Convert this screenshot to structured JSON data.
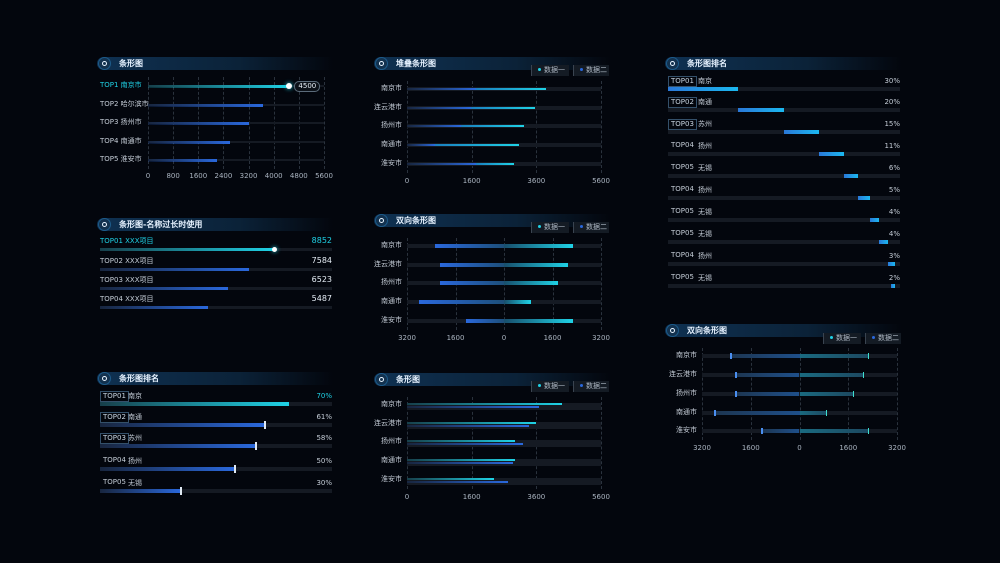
{
  "colors": {
    "cyan": "#1fd2e6",
    "blue": "#2a68dc",
    "track": "#151a23"
  },
  "panel_bar": {
    "title": "条形图",
    "highlight_value": "4500",
    "rows": [
      {
        "label": "TOP1  南京市",
        "value": 4500
      },
      {
        "label": "TOP2 哈尔滨市",
        "value": 3650
      },
      {
        "label": "TOP3 扬州市",
        "value": 3200
      },
      {
        "label": "TOP4 南通市",
        "value": 2600
      },
      {
        "label": "TOP5 淮安市",
        "value": 2200
      }
    ],
    "ticks": [
      "0",
      "800",
      "1600",
      "2400",
      "3200",
      "4000",
      "4800",
      "5600"
    ],
    "max": 5600
  },
  "panel_long": {
    "title": "条形图-名称过长时使用",
    "rows": [
      {
        "label": "TOP01  XXX项目",
        "value": "8852",
        "n": 8852
      },
      {
        "label": "TOP02  XXX项目",
        "value": "7584",
        "n": 7584
      },
      {
        "label": "TOP03  XXX项目",
        "value": "6523",
        "n": 6523
      },
      {
        "label": "TOP04  XXX项目",
        "value": "5487",
        "n": 5487
      }
    ],
    "max": 11800
  },
  "panel_rank_left": {
    "title": "条形图排名",
    "rows": [
      {
        "rank": "TOP01",
        "city": "南京",
        "pct": "70%",
        "n": 70
      },
      {
        "rank": "TOP02",
        "city": "南通",
        "pct": "61%",
        "n": 61
      },
      {
        "rank": "TOP03",
        "city": "苏州",
        "pct": "58%",
        "n": 58
      },
      {
        "rank": "TOP04",
        "city": "扬州",
        "pct": "50%",
        "n": 50
      },
      {
        "rank": "TOP05",
        "city": "无锡",
        "pct": "30%",
        "n": 30
      }
    ]
  },
  "legend": {
    "series1": "数据一",
    "series2": "数据二"
  },
  "chart_data": [
    {
      "type": "bar",
      "title": "堆叠条形图",
      "stacked": true,
      "categories": [
        "南京市",
        "连云港市",
        "扬州市",
        "南通市",
        "淮安市"
      ],
      "series": [
        {
          "name": "数据二",
          "values": [
            2000,
            1850,
            1560,
            810,
            2000
          ]
        },
        {
          "name": "数据一",
          "values": [
            2000,
            1850,
            1820,
            2420,
            1090
          ]
        }
      ],
      "ticks": [
        "0",
        "1600",
        "3600",
        "5600"
      ],
      "xlim": [
        0,
        5600
      ]
    },
    {
      "type": "bar",
      "title": "双向条形图",
      "diverging": true,
      "categories": [
        "南京市",
        "连云港市",
        "扬州市",
        "南通市",
        "淮安市"
      ],
      "series": [
        {
          "name": "数据二",
          "values": [
            2280,
            2110,
            2110,
            2800,
            1250
          ]
        },
        {
          "name": "数据一",
          "values": [
            2280,
            2110,
            1780,
            890,
            2280
          ]
        }
      ],
      "ticks": [
        "3200",
        "1600",
        "0",
        "1600",
        "3200"
      ],
      "xlim": [
        -3200,
        3200
      ]
    },
    {
      "type": "bar",
      "title": "条形图",
      "grouped": true,
      "categories": [
        "南京市",
        "连云港市",
        "扬州市",
        "南通市",
        "淮安市"
      ],
      "series": [
        {
          "name": "数据一",
          "values": [
            4470,
            3720,
            3120,
            3120,
            2510
          ]
        },
        {
          "name": "数据二",
          "values": [
            3810,
            3520,
            3350,
            3060,
            2910
          ]
        }
      ],
      "ticks": [
        "0",
        "1600",
        "3600",
        "5600"
      ],
      "xlim": [
        0,
        5600
      ]
    },
    {
      "type": "bar",
      "title": "双向条形图",
      "diverging": true,
      "style": "marker",
      "categories": [
        "南京市",
        "连云港市",
        "扬州市",
        "南通市",
        "淮安市"
      ],
      "series": [
        {
          "name": "数据二",
          "values": [
            2280,
            2110,
            2110,
            2800,
            1250
          ]
        },
        {
          "name": "数据一",
          "values": [
            2280,
            2110,
            1780,
            890,
            2280
          ]
        }
      ],
      "ticks": [
        "3200",
        "1600",
        "0",
        "1600",
        "3200"
      ],
      "xlim": [
        -3200,
        3200
      ]
    }
  ],
  "panel_rank_right": {
    "title": "条形图排名",
    "rows": [
      {
        "rank": "TOP01",
        "city": "南京",
        "pct": "30%",
        "n": 30
      },
      {
        "rank": "TOP02",
        "city": "南通",
        "pct": "20%",
        "n": 20
      },
      {
        "rank": "TOP03",
        "city": "苏州",
        "pct": "15%",
        "n": 15
      },
      {
        "rank": "TOP04",
        "city": "扬州",
        "pct": "11%",
        "n": 11
      },
      {
        "rank": "TOP05",
        "city": "无锡",
        "pct": "6%",
        "n": 6
      },
      {
        "rank": "TOP04",
        "city": "扬州",
        "pct": "5%",
        "n": 5
      },
      {
        "rank": "TOP05",
        "city": "无锡",
        "pct": "4%",
        "n": 4
      },
      {
        "rank": "TOP05",
        "city": "无锡",
        "pct": "4%",
        "n": 4
      },
      {
        "rank": "TOP04",
        "city": "扬州",
        "pct": "3%",
        "n": 3
      },
      {
        "rank": "TOP05",
        "city": "无锡",
        "pct": "2%",
        "n": 2
      }
    ]
  }
}
